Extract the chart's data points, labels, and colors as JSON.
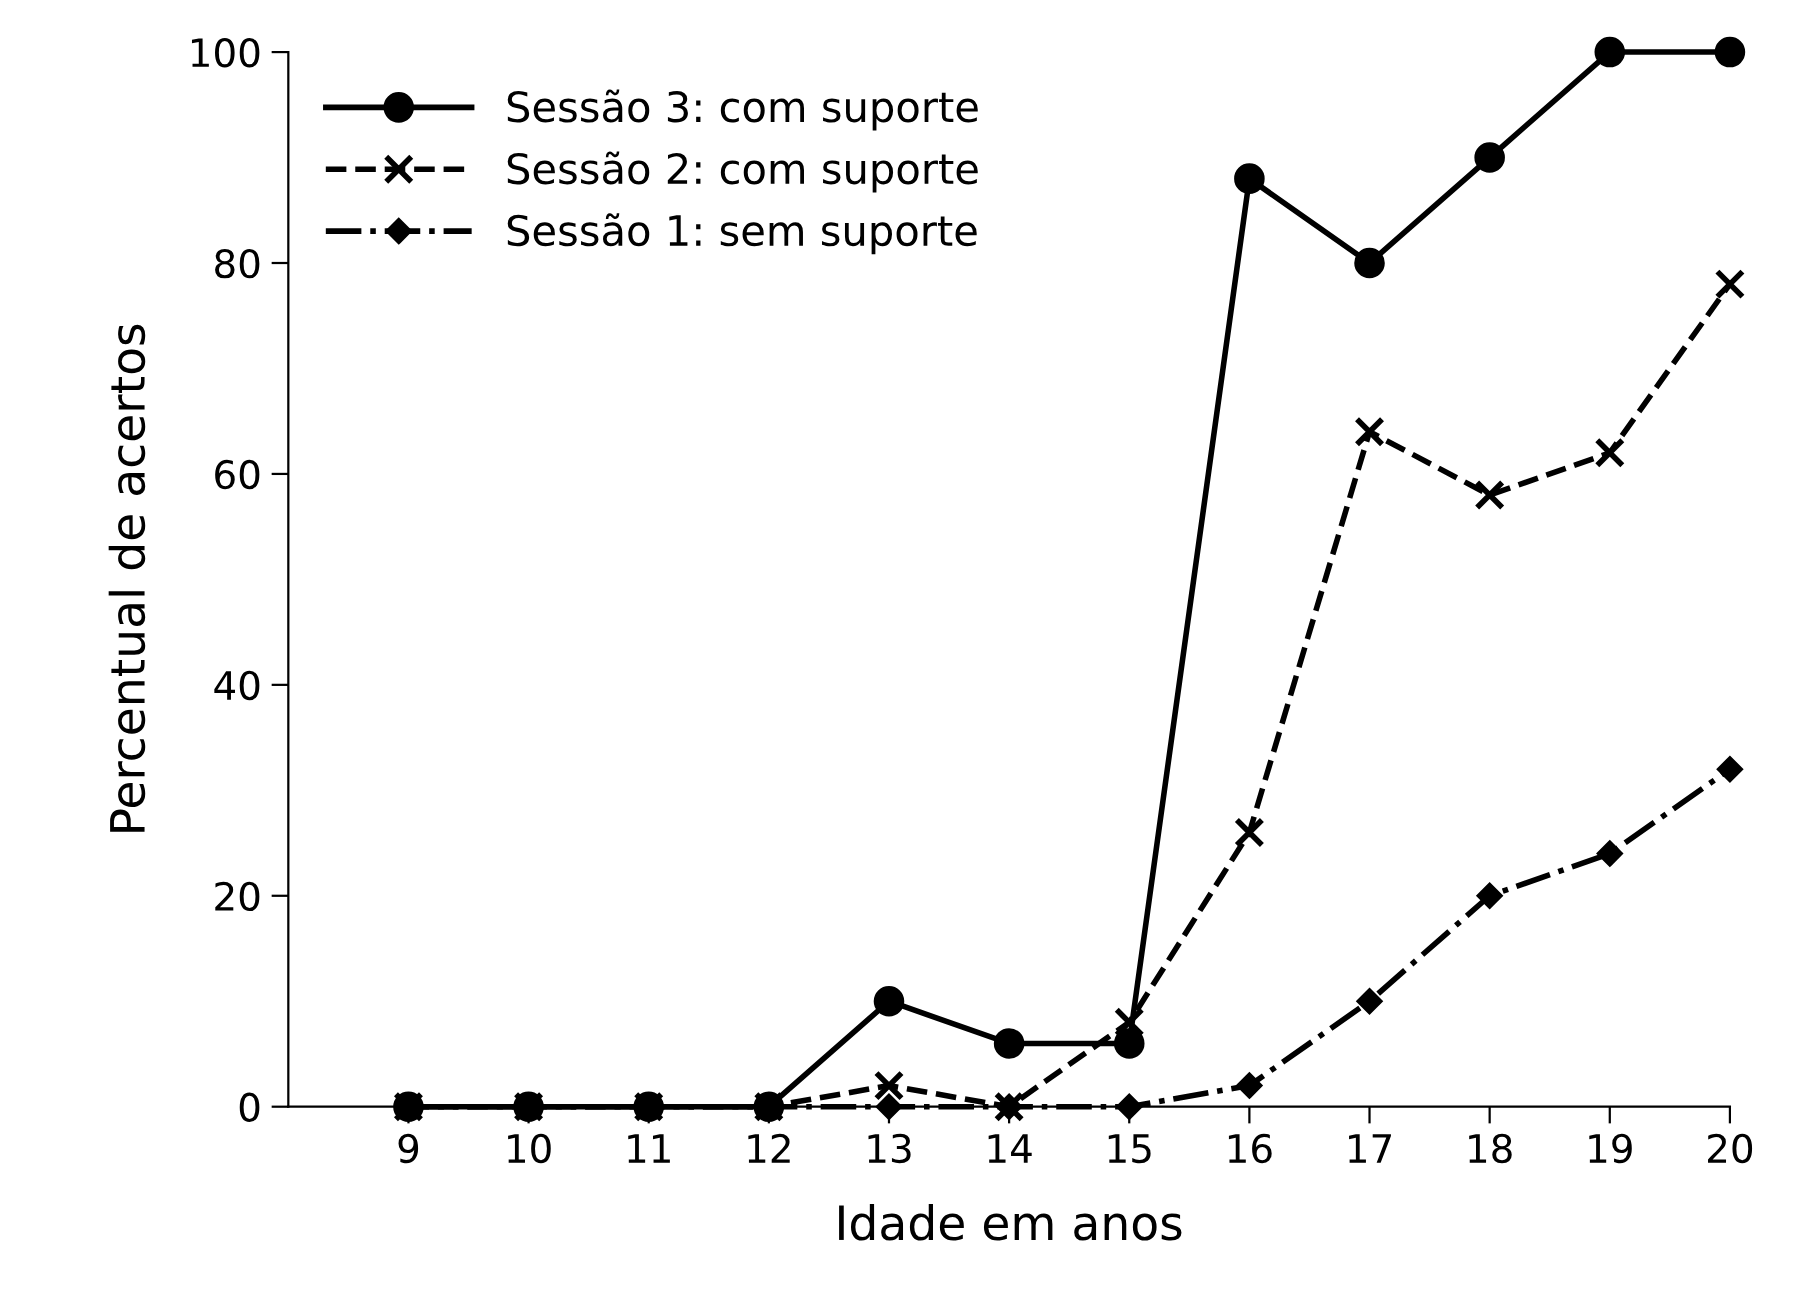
{
  "chart_data": {
    "type": "line",
    "xlabel": "Idade em anos",
    "ylabel": "Percentual de acertos",
    "x": [
      9,
      10,
      11,
      12,
      13,
      14,
      15,
      16,
      17,
      18,
      19,
      20
    ],
    "series": [
      {
        "name": "Sessão 3: com suporte",
        "color": "#000000",
        "marker": "circle",
        "line_style": "solid",
        "values": [
          0,
          0,
          0,
          0,
          10,
          6,
          6,
          88,
          80,
          90,
          100,
          100
        ]
      },
      {
        "name": "Sessão 2: com suporte",
        "color": "#000000",
        "marker": "cross",
        "line_style": "dashed",
        "values": [
          0,
          0,
          0,
          0,
          2,
          0,
          8,
          26,
          64,
          58,
          62,
          78
        ]
      },
      {
        "name": "Sessão 1: sem suporte",
        "color": "#000000",
        "marker": "diamond",
        "line_style": "dashdot",
        "values": [
          0,
          0,
          0,
          0,
          0,
          0,
          0,
          2,
          10,
          20,
          24,
          32
        ]
      }
    ],
    "xlim": [
      8,
      20
    ],
    "xticks": [
      9,
      10,
      11,
      12,
      13,
      14,
      15,
      16,
      17,
      18,
      19,
      20
    ],
    "ylim": [
      0,
      100
    ],
    "yticks": [
      0,
      20,
      40,
      60,
      80,
      100
    ],
    "grid": false,
    "legend": "top left"
  }
}
